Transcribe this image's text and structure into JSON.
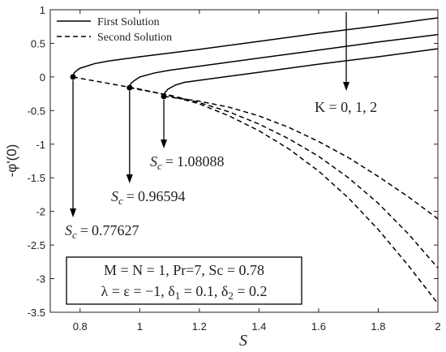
{
  "chart_data": {
    "type": "line",
    "xlabel": "S",
    "ylabel": "-φ'(0)",
    "xlim": [
      0.7,
      2
    ],
    "xticks": [
      0.8,
      1,
      1.2,
      1.4,
      1.6,
      1.8,
      2
    ],
    "ylim": [
      -3.5,
      1
    ],
    "yticks": [
      -3.5,
      -3,
      -2.5,
      -2,
      -1.5,
      -1,
      -0.5,
      0,
      0.5,
      1
    ],
    "legend": "top-left",
    "series": [
      {
        "name": "First Solution",
        "color": "#000000",
        "dash": "solid",
        "curves": [
          {
            "x": [
              0.77627,
              0.78,
              0.79,
              0.8,
              0.85,
              0.9,
              1.0,
              1.2,
              1.4,
              1.6,
              1.8,
              2.0
            ],
            "values": [
              0,
              0.06,
              0.1,
              0.13,
              0.2,
              0.24,
              0.3,
              0.41,
              0.53,
              0.65,
              0.76,
              0.88
            ]
          },
          {
            "x": [
              0.96594,
              0.97,
              0.98,
              1.0,
              1.05,
              1.1,
              1.2,
              1.4,
              1.6,
              1.8,
              2.0
            ],
            "values": [
              -0.16,
              -0.1,
              -0.06,
              0.0,
              0.06,
              0.1,
              0.16,
              0.28,
              0.4,
              0.52,
              0.63
            ]
          },
          {
            "x": [
              1.08088,
              1.085,
              1.095,
              1.12,
              1.15,
              1.2,
              1.4,
              1.6,
              1.8,
              2.0
            ],
            "values": [
              -0.29,
              -0.23,
              -0.18,
              -0.12,
              -0.08,
              -0.05,
              0.07,
              0.19,
              0.3,
              0.42
            ]
          }
        ]
      },
      {
        "name": "Second Solution",
        "color": "#000000",
        "dash": "dashed",
        "curves": [
          {
            "x": [
              0.77627,
              0.8,
              0.9,
              1.0,
              1.1,
              1.2,
              1.3,
              1.4,
              1.5,
              1.6,
              1.7,
              1.8,
              1.9,
              2.0
            ],
            "values": [
              0,
              -0.02,
              -0.1,
              -0.18,
              -0.28,
              -0.4,
              -0.58,
              -0.8,
              -1.07,
              -1.4,
              -1.8,
              -2.27,
              -2.8,
              -3.37
            ]
          },
          {
            "x": [
              0.96594,
              1.0,
              1.1,
              1.2,
              1.3,
              1.4,
              1.5,
              1.6,
              1.7,
              1.8,
              1.9,
              2.0
            ],
            "values": [
              -0.16,
              -0.19,
              -0.27,
              -0.38,
              -0.52,
              -0.7,
              -0.92,
              -1.18,
              -1.5,
              -1.88,
              -2.33,
              -2.84
            ]
          },
          {
            "x": [
              1.08088,
              1.1,
              1.2,
              1.3,
              1.4,
              1.5,
              1.6,
              1.7,
              1.8,
              1.9,
              2.0
            ],
            "values": [
              -0.29,
              -0.3,
              -0.36,
              -0.45,
              -0.58,
              -0.75,
              -0.96,
              -1.2,
              -1.48,
              -1.78,
              -2.11
            ]
          }
        ]
      }
    ],
    "k_label": "K = 0, 1, 2",
    "critical_labels": [
      {
        "symbol": "S",
        "subscript": "c",
        "relation": "=",
        "value": 1.08088
      },
      {
        "symbol": "S",
        "subscript": "c",
        "relation": "=",
        "value": 0.96594
      },
      {
        "symbol": "S",
        "subscript": "c",
        "relation": "=",
        "value": 0.77627
      }
    ],
    "parameter_box": [
      [
        "M = N = 1, Pr=7, Sc = 0.78"
      ],
      [
        "λ = ε = −1, δ",
        {
          "sub": "1"
        },
        " = 0.1, δ",
        {
          "sub": "2"
        },
        " = 0.2"
      ]
    ]
  }
}
